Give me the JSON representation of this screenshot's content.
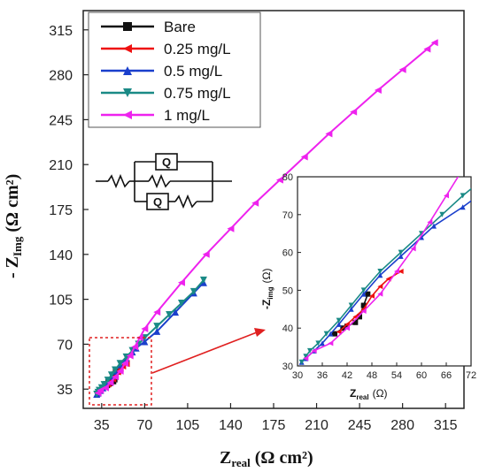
{
  "chart_data": {
    "type": "scatter",
    "title": "",
    "xlabel_main": "Z",
    "xlabel_sub": "real",
    "xlabel_unit": "(Ω cm²)",
    "ylabel_prefix": "- Z",
    "ylabel_sub": "Img",
    "ylabel_unit": "(Ω cm²)",
    "xlim": [
      20,
      330
    ],
    "ylim": [
      20,
      330
    ],
    "x_ticks": [
      "35",
      "70",
      "105",
      "140",
      "175",
      "210",
      "245",
      "280",
      "315"
    ],
    "y_ticks": [
      "35",
      "70",
      "105",
      "140",
      "175",
      "210",
      "245",
      "280",
      "315"
    ],
    "legend_position": "top-left",
    "series": [
      {
        "name": "Bare",
        "color": "#111111",
        "marker": "square",
        "x": [
          39,
          41,
          42,
          44,
          45,
          46,
          47
        ],
        "y": [
          38.5,
          40,
          40.5,
          41.5,
          43,
          46,
          49
        ]
      },
      {
        "name": "0.25 mg/L",
        "color": "#ee1111",
        "marker": "triangle-left",
        "x": [
          40,
          42,
          44,
          46,
          48,
          50,
          52,
          55
        ],
        "y": [
          39,
          41,
          43,
          45,
          48.5,
          51,
          53,
          55
        ]
      },
      {
        "name": "0.5 mg/L",
        "color": "#1a3fcc",
        "marker": "triangle-up",
        "x": [
          31,
          32,
          34,
          36,
          38,
          40,
          43,
          46,
          50,
          55,
          60,
          63,
          70,
          80,
          95,
          110,
          118
        ],
        "y": [
          31,
          32,
          34,
          36,
          38.5,
          41,
          45,
          49,
          54,
          59,
          64,
          67,
          72,
          80,
          95,
          110,
          118
        ]
      },
      {
        "name": "0.75 mg/L",
        "color": "#1a8a86",
        "marker": "triangle-down",
        "x": [
          31,
          32,
          33,
          35,
          37,
          40,
          43,
          46,
          50,
          55,
          60,
          65,
          70,
          80,
          90,
          100,
          110,
          118
        ],
        "y": [
          31,
          32.5,
          34,
          36,
          38.5,
          42,
          46,
          50,
          55,
          60,
          65,
          70,
          75,
          84,
          93,
          102,
          111,
          120
        ]
      },
      {
        "name": "1 mg/L",
        "color": "#ee22ee",
        "marker": "triangle-left",
        "x": [
          32,
          34,
          38,
          42,
          46,
          50,
          54,
          58,
          62,
          66,
          70,
          80,
          100,
          120,
          140,
          160,
          180,
          200,
          220,
          240,
          260,
          280,
          300,
          306
        ],
        "y": [
          32,
          34,
          36,
          40,
          44.5,
          49,
          55,
          61,
          68,
          75,
          82,
          95,
          118,
          140,
          160,
          180,
          198,
          216,
          234,
          251,
          268,
          284,
          300,
          305
        ]
      }
    ],
    "inset": {
      "xlabel_main": "Z",
      "xlabel_sub": "real",
      "xlabel_unit": "(Ω)",
      "ylabel_prefix": "-Z",
      "ylabel_sub": "img",
      "ylabel_unit": "(Ω)",
      "xlim": [
        30,
        72
      ],
      "ylim": [
        30,
        80
      ],
      "x_ticks": [
        "30",
        "36",
        "42",
        "48",
        "54",
        "60",
        "66",
        "72"
      ],
      "y_ticks": [
        "30",
        "40",
        "50",
        "60",
        "70",
        "80"
      ]
    },
    "circuit_labels": [
      "Q",
      "Q"
    ]
  }
}
